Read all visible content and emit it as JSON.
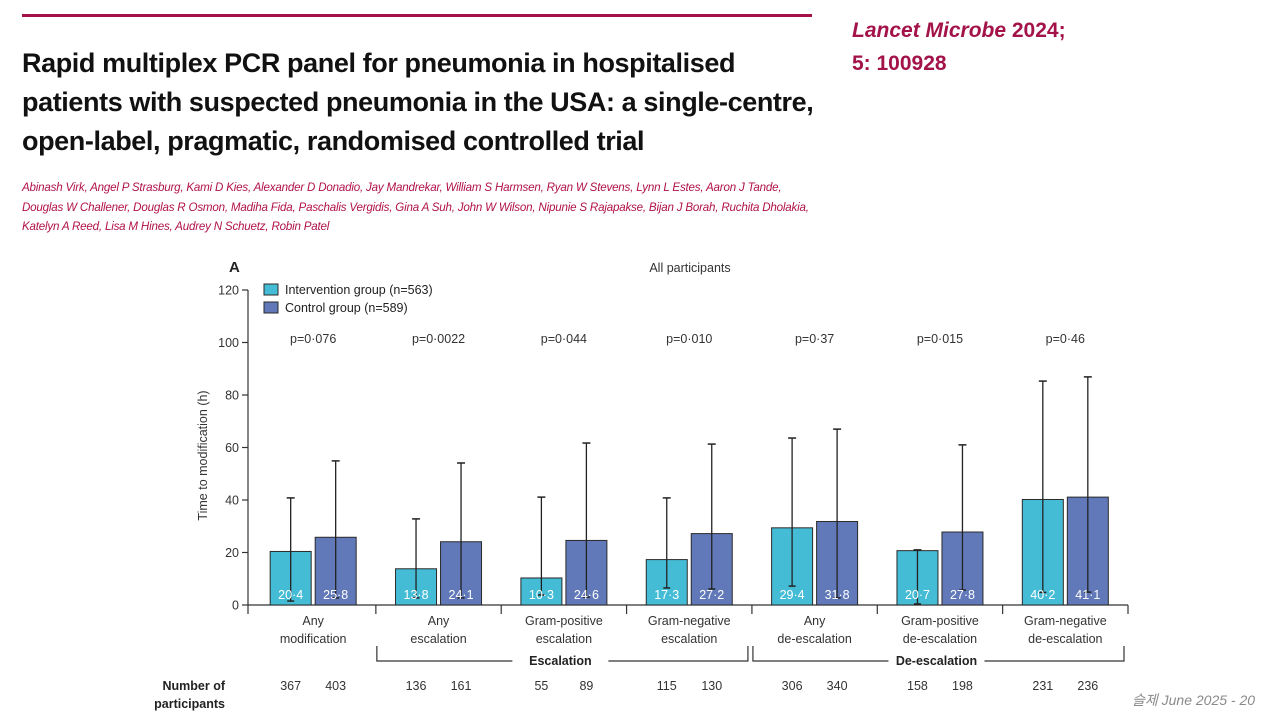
{
  "paper": {
    "title": "Rapid multiplex PCR panel for pneumonia in hospitalised patients with suspected pneumonia in the USA: a single-centre, open-label, pragmatic, randomised controlled trial",
    "citation_journal": "Lancet Microbe",
    "citation_year": " 2024;",
    "citation_volume": "5: 100928",
    "authors": "Abinash Virk, Angel P Strasburg, Kami D Kies, Alexander D Donadio, Jay Mandrekar, William S Harmsen, Ryan W Stevens, Lynn L Estes, Aaron J Tande, Douglas W Challener, Douglas R Osmon, Madiha Fida, Paschalis Vergidis, Gina A Suh, John W Wilson, Nipunie S Rajapakse, Bijan J Borah, Ruchita Dholakia, Katelyn A Reed, Lisa M Hines, Audrey N Schuetz, Robin Patel"
  },
  "footer": {
    "text": "슬제  June 2025 -  20"
  },
  "chart_data": {
    "type": "bar",
    "panel_label": "A",
    "title": "All participants",
    "xlabel": "",
    "ylabel": "Time to modification (h)",
    "ylim": [
      0,
      120
    ],
    "yticks": [
      0,
      20,
      40,
      60,
      80,
      100,
      120
    ],
    "grid": false,
    "legend_position": "top-left",
    "colors": {
      "intervention": "#45bcd6",
      "control": "#6179b8",
      "edge": "#2a2a2a"
    },
    "categories": [
      [
        "Any",
        "modification"
      ],
      [
        "Any",
        "escalation"
      ],
      [
        "Gram-positive",
        "escalation"
      ],
      [
        "Gram-negative",
        "escalation"
      ],
      [
        "Any",
        "de-escalation"
      ],
      [
        "Gram-positive",
        "de-escalation"
      ],
      [
        "Gram-negative",
        "de-escalation"
      ]
    ],
    "series": [
      {
        "name": "Intervention group (n=563)",
        "key": "intervention",
        "values": [
          20.4,
          13.8,
          10.3,
          17.3,
          29.4,
          20.7,
          40.2
        ],
        "value_labels": [
          "20·4",
          "13·8",
          "10·3",
          "17·3",
          "29·4",
          "20·7",
          "40·2"
        ],
        "error_low": [
          1.5,
          2.7,
          3.8,
          6.5,
          7.2,
          0.4,
          4.8
        ],
        "error_high": [
          40.8,
          32.8,
          41.1,
          40.8,
          63.6,
          21.0,
          85.3
        ],
        "n": [
          "367",
          "136",
          "55",
          "115",
          "306",
          "158",
          "231"
        ]
      },
      {
        "name": "Control group (n=589)",
        "key": "control",
        "values": [
          25.8,
          24.1,
          24.6,
          27.2,
          31.8,
          27.8,
          41.1
        ],
        "value_labels": [
          "25·8",
          "24·1",
          "24·6",
          "27·2",
          "31·8",
          "27·8",
          "41·1"
        ],
        "error_low": [
          2.7,
          2.7,
          3.0,
          6.1,
          2.7,
          5.7,
          4.9
        ],
        "error_high": [
          54.9,
          54.1,
          61.7,
          61.3,
          67.0,
          61.0,
          86.9
        ],
        "n": [
          "403",
          "161",
          "89",
          "130",
          "340",
          "198",
          "236"
        ]
      }
    ],
    "p_values": [
      "p=0·076",
      "p=0·0022",
      "p=0·044",
      "p=0·010",
      "p=0·37",
      "p=0·015",
      "p=0·46"
    ],
    "groups": [
      {
        "label": "Escalation",
        "from": 1,
        "to": 3
      },
      {
        "label": "De-escalation",
        "from": 4,
        "to": 6
      }
    ],
    "n_label": [
      "Number of",
      "participants"
    ]
  }
}
